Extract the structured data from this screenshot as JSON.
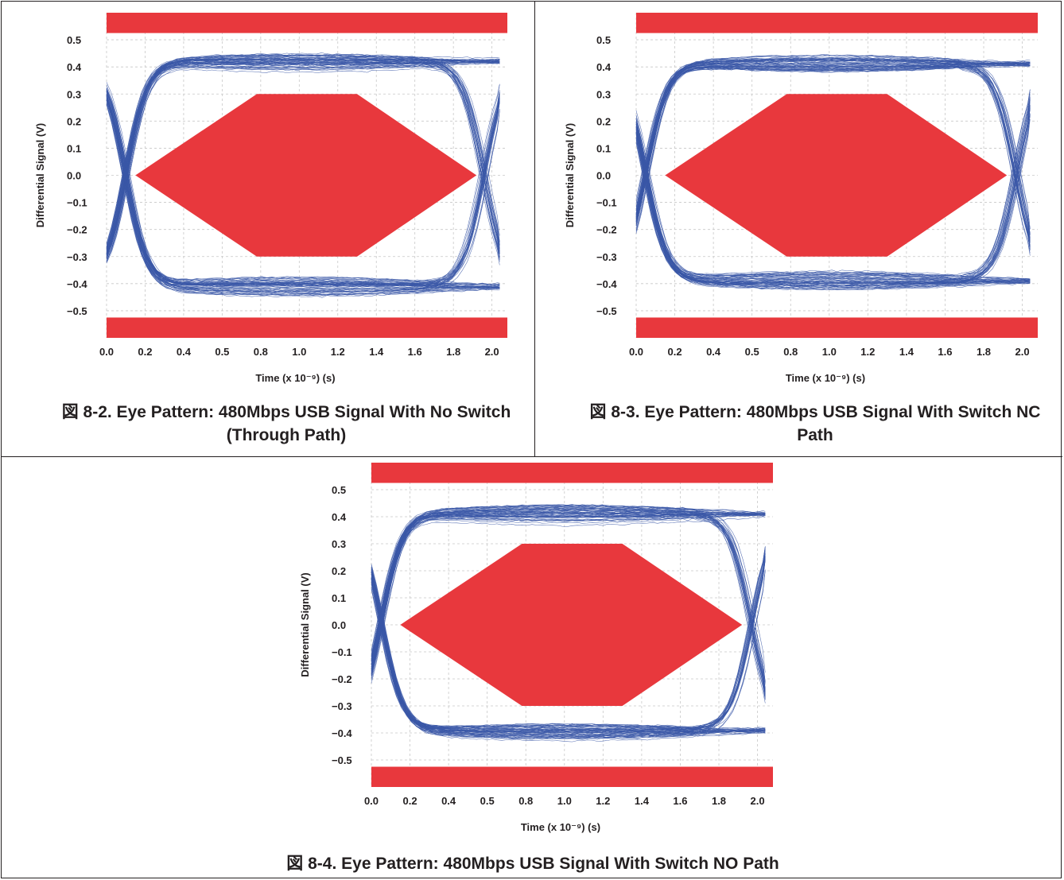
{
  "chart_data": [
    {
      "type": "eye-diagram",
      "caption": "図 8-2. Eye Pattern: 480Mbps USB Signal With No Switch (Through Path)",
      "xlabel": "Time (x 10⁻⁹) (s)",
      "ylabel": "Differential Signal (V)",
      "x_ticks": [
        "0.0",
        "0.2",
        "0.4",
        "0.5",
        "0.8",
        "1.0",
        "1.2",
        "1.4",
        "1.6",
        "1.8",
        "2.0"
      ],
      "y_ticks": [
        "0.5",
        "0.4",
        "0.3",
        "0.2",
        "0.1",
        "0.0",
        "−0.1",
        "−0.2",
        "−0.3",
        "−0.4",
        "−0.5"
      ],
      "xlim": [
        0.0,
        2.08
      ],
      "ylim": [
        -0.6,
        0.6
      ],
      "grid": true,
      "signal_levels": {
        "high": 0.42,
        "low": -0.41
      },
      "transition_crossings": [
        0.1,
        1.96
      ],
      "mask": {
        "hexagon": [
          [
            0.15,
            0.0
          ],
          [
            0.78,
            0.3
          ],
          [
            1.3,
            0.3
          ],
          [
            1.92,
            0.0
          ],
          [
            1.3,
            -0.3
          ],
          [
            0.78,
            -0.3
          ]
        ],
        "top_band": [
          0.525,
          0.6
        ],
        "bottom_band": [
          -0.6,
          -0.525
        ]
      },
      "colors": {
        "trace": "#3a57a7",
        "mask": "#e8383d"
      }
    },
    {
      "type": "eye-diagram",
      "caption": "図 8-3. Eye Pattern: 480Mbps USB Signal With Switch NC Path",
      "xlabel": "Time (x 10⁻⁹) (s)",
      "ylabel": "Differential Signal (V)",
      "x_ticks": [
        "0.0",
        "0.2",
        "0.4",
        "0.5",
        "0.8",
        "1.0",
        "1.2",
        "1.4",
        "1.6",
        "1.8",
        "2.0"
      ],
      "y_ticks": [
        "0.5",
        "0.4",
        "0.3",
        "0.2",
        "0.1",
        "0.0",
        "−0.1",
        "−0.2",
        "−0.3",
        "−0.4",
        "−0.5"
      ],
      "xlim": [
        0.0,
        2.08
      ],
      "ylim": [
        -0.6,
        0.6
      ],
      "grid": true,
      "signal_levels": {
        "high": 0.41,
        "low": -0.39
      },
      "transition_crossings": [
        0.05,
        1.97
      ],
      "mask": {
        "hexagon": [
          [
            0.15,
            0.0
          ],
          [
            0.78,
            0.3
          ],
          [
            1.3,
            0.3
          ],
          [
            1.92,
            0.0
          ],
          [
            1.3,
            -0.3
          ],
          [
            0.78,
            -0.3
          ]
        ],
        "top_band": [
          0.525,
          0.6
        ],
        "bottom_band": [
          -0.6,
          -0.525
        ]
      },
      "colors": {
        "trace": "#3a57a7",
        "mask": "#e8383d"
      }
    },
    {
      "type": "eye-diagram",
      "caption": "図 8-4. Eye Pattern: 480Mbps USB Signal With Switch NO Path",
      "xlabel": "Time (x 10⁻⁹) (s)",
      "ylabel": "Differential Signal (V)",
      "x_ticks": [
        "0.0",
        "0.2",
        "0.4",
        "0.5",
        "0.8",
        "1.0",
        "1.2",
        "1.4",
        "1.6",
        "1.8",
        "2.0"
      ],
      "y_ticks": [
        "0.5",
        "0.4",
        "0.3",
        "0.2",
        "0.1",
        "0.0",
        "−0.1",
        "−0.2",
        "−0.3",
        "−0.4",
        "−0.5"
      ],
      "xlim": [
        0.0,
        2.08
      ],
      "ylim": [
        -0.6,
        0.6
      ],
      "grid": true,
      "signal_levels": {
        "high": 0.41,
        "low": -0.39
      },
      "transition_crossings": [
        0.05,
        1.97
      ],
      "mask": {
        "hexagon": [
          [
            0.15,
            0.0
          ],
          [
            0.78,
            0.3
          ],
          [
            1.3,
            0.3
          ],
          [
            1.92,
            0.0
          ],
          [
            1.3,
            -0.3
          ],
          [
            0.78,
            -0.3
          ]
        ],
        "top_band": [
          0.525,
          0.6
        ],
        "bottom_band": [
          -0.6,
          -0.525
        ]
      },
      "colors": {
        "trace": "#3a57a7",
        "mask": "#e8383d"
      }
    }
  ]
}
